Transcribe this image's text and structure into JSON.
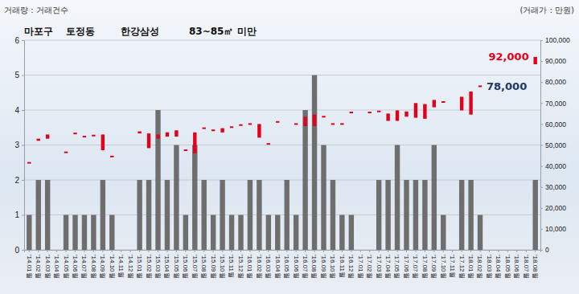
{
  "chart_data": {
    "type": "bar",
    "title": [
      "마포구",
      "토정동",
      "한강삼성",
      "83~85㎡ 미만"
    ],
    "y_label": "거래량 : 거래건수",
    "y2_label": "(거래가 : 만원)",
    "categories": [
      "'14.01월",
      "'14.02월",
      "'14.03월",
      "'14.04월",
      "'14.05월",
      "'14.06월",
      "'14.07월",
      "'14.08월",
      "'14.09월",
      "'14.10월",
      "'14.11월",
      "'14.12월",
      "'15.01월",
      "'15.02월",
      "'15.03월",
      "'15.04월",
      "'15.05월",
      "'15.06월",
      "'15.07월",
      "'15.08월",
      "'15.09월",
      "'15.10월",
      "'15.11월",
      "'15.12월",
      "'16.01월",
      "'16.02월",
      "'16.03월",
      "'16.04월",
      "'16.05월",
      "'16.06월",
      "'16.07월",
      "'16.08월",
      "'16.09월",
      "'16.10월",
      "'16.11월",
      "'16.12월",
      "'17.01월",
      "'17.02월",
      "'17.03월",
      "'17.04월",
      "'17.05월",
      "'17.06월",
      "'17.07월",
      "'17.08월",
      "'17.09월",
      "'17.10월",
      "'17.11월",
      "'17.12월",
      "'18.01월",
      "'18.02월",
      "'18.03월",
      "'18.04월",
      "'18.05월",
      "'18.06월",
      "'18.07월",
      "'18.08월"
    ],
    "series": [
      {
        "type": "bar",
        "color": "#6e6e6e",
        "values": [
          1,
          2,
          2,
          0,
          1,
          1,
          1,
          1,
          2,
          1,
          0,
          0,
          2,
          2,
          4,
          2,
          3,
          1,
          3,
          2,
          1,
          2,
          1,
          1,
          2,
          2,
          1,
          1,
          2,
          1,
          4,
          5,
          3,
          2,
          1,
          1,
          0,
          0,
          2,
          2,
          3,
          2,
          2,
          2,
          3,
          1,
          0,
          2,
          2,
          1,
          0,
          0,
          0,
          0,
          0,
          2
        ]
      },
      {
        "type": "candlestick",
        "axis": "y2",
        "color": "#e3001b",
        "low": [
          41000,
          52000,
          53000,
          null,
          46000,
          55000,
          53500,
          54000,
          47500,
          44000,
          null,
          null,
          55500,
          48500,
          53000,
          54000,
          54000,
          47000,
          46000,
          57500,
          56500,
          56000,
          58000,
          59000,
          59500,
          53500,
          50000,
          60500,
          null,
          59500,
          59000,
          59000,
          63000,
          59500,
          59500,
          65000,
          null,
          65000,
          65500,
          61500,
          61500,
          63500,
          63000,
          62500,
          68000,
          70000,
          null,
          66500,
          64500,
          77500,
          null,
          null,
          null,
          null,
          null,
          88500
        ],
        "high": [
          41500,
          53000,
          55000,
          null,
          46500,
          55500,
          54000,
          54500,
          55000,
          44500,
          null,
          null,
          56500,
          55500,
          55000,
          56000,
          57000,
          47500,
          56000,
          58000,
          57000,
          58000,
          58500,
          59500,
          60000,
          60000,
          50500,
          61000,
          null,
          60000,
          63500,
          64500,
          63500,
          60000,
          60000,
          65500,
          null,
          65500,
          66000,
          65000,
          66500,
          66000,
          70000,
          69500,
          71500,
          70500,
          null,
          73000,
          75500,
          78000,
          null,
          null,
          null,
          null,
          null,
          92000
        ]
      }
    ],
    "annotations": [
      {
        "text": "92,000",
        "value": 92000,
        "category": "'18.08월",
        "color": "#e3001b"
      },
      {
        "text": "78,000",
        "value": 78000,
        "category": "'18.02월",
        "color": "#1f3864"
      }
    ],
    "ylim": [
      0,
      6
    ],
    "yticks": [
      0,
      1,
      2,
      3,
      4,
      5,
      6
    ],
    "y2lim": [
      0,
      100000
    ],
    "y2ticks": [
      0,
      {
        "value": 10000,
        "label": "10,000"
      },
      {
        "value": 20000,
        "label": "20,000"
      },
      {
        "value": 30000,
        "label": "30,000"
      },
      {
        "value": 40000,
        "label": "40,000"
      },
      {
        "value": 50000,
        "label": "50,000"
      },
      {
        "value": 60000,
        "label": "60,000"
      },
      {
        "value": 70000,
        "label": "70,000"
      },
      {
        "value": 80000,
        "label": "80,000"
      },
      {
        "value": 90000,
        "label": "90,000"
      },
      {
        "value": 100000,
        "label": "100,000"
      }
    ],
    "grid": true
  }
}
